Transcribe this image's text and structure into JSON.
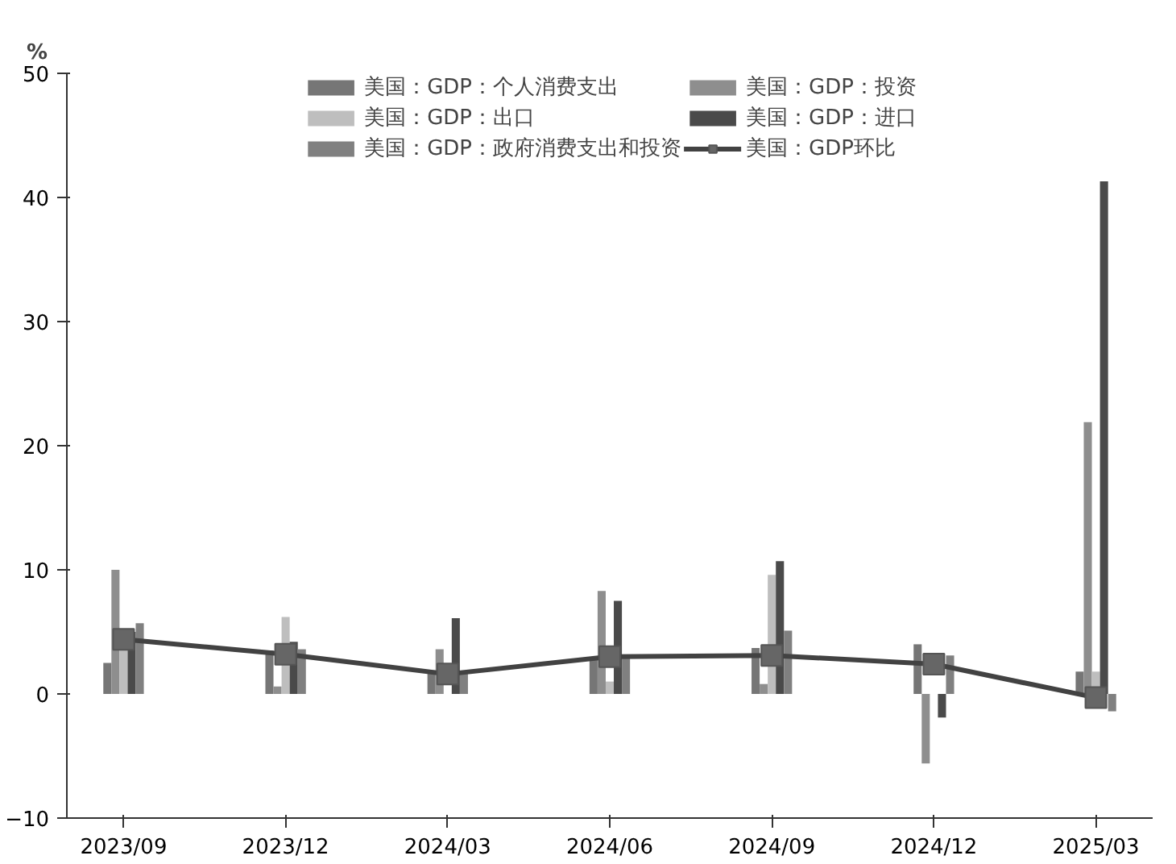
{
  "chart_data": {
    "type": "bar",
    "ylabel": "%",
    "categories": [
      "2023/09",
      "2023/12",
      "2024/03",
      "2024/06",
      "2024/09",
      "2024/12",
      "2025/03"
    ],
    "series": [
      {
        "name": "美国：GDP：个人消费支出",
        "color": "#767676",
        "values": [
          2.5,
          3.5,
          1.9,
          2.8,
          3.7,
          4.0,
          1.8
        ]
      },
      {
        "name": "美国：GDP：投资",
        "color": "#8e8e8e",
        "values": [
          10.0,
          0.6,
          3.6,
          8.3,
          0.8,
          -5.6,
          21.9
        ]
      },
      {
        "name": "美国：GDP：出口",
        "color": "#bebebe",
        "values": [
          3.7,
          6.2,
          null,
          1.0,
          9.6,
          null,
          1.8
        ]
      },
      {
        "name": "美国：GDP：进口",
        "color": "#4a4a4a",
        "values": [
          5.0,
          4.2,
          6.1,
          7.5,
          10.7,
          -1.9,
          41.3
        ]
      },
      {
        "name": "美国：GDP：政府消费支出和投资",
        "color": "#808080",
        "values": [
          5.7,
          3.6,
          1.8,
          3.1,
          5.1,
          3.1,
          -1.4
        ]
      },
      {
        "name": "美国：GDP环比",
        "type": "line",
        "color": "#424242",
        "values": [
          4.4,
          3.2,
          1.6,
          3.0,
          3.1,
          2.4,
          -0.3
        ]
      }
    ],
    "ylim": [
      -10,
      50
    ],
    "yticks": [
      -10,
      0,
      10,
      20,
      30,
      40,
      50
    ],
    "legend": "top",
    "marker": "square",
    "grid": false
  }
}
